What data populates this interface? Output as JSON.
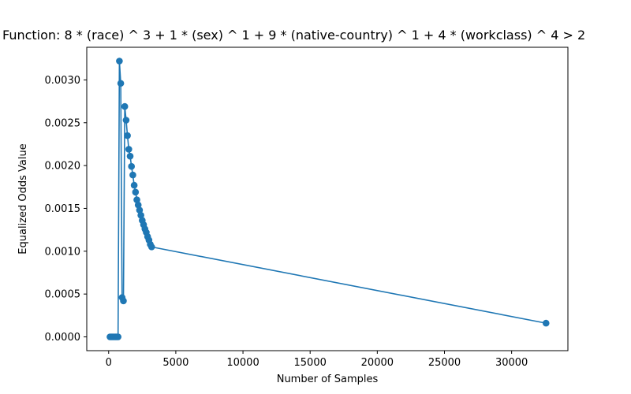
{
  "chart_data": {
    "type": "line",
    "title": "Function:  8 * (race) ^ 3 +  1 * (sex) ^ 1 +  9 * (native-country) ^ 1 +  4 * (workclass) ^ 4   >  2",
    "xlabel": "Number of Samples",
    "ylabel": "Equalized Odds Value",
    "xlim": [
      -1630,
      34190
    ],
    "ylim": [
      -0.000161,
      0.003381
    ],
    "xticks": [
      0,
      5000,
      10000,
      15000,
      20000,
      25000,
      30000
    ],
    "yticks": [
      0.0,
      0.0005,
      0.001,
      0.0015,
      0.002,
      0.0025,
      0.003
    ],
    "ytick_labels": [
      "0.0000",
      "0.0005",
      "0.0010",
      "0.0015",
      "0.0020",
      "0.0025",
      "0.0030"
    ],
    "series_color": "#1f77b4",
    "series": [
      {
        "name": "Equalized Odds",
        "x": [
          100,
          200,
          300,
          400,
          500,
          600,
          700,
          800,
          900,
          1000,
          1100,
          1200,
          1300,
          1400,
          1500,
          1600,
          1700,
          1800,
          1900,
          2000,
          2100,
          2200,
          2300,
          2400,
          2500,
          2600,
          2700,
          2800,
          2900,
          3000,
          3100,
          3200,
          32561
        ],
        "y": [
          0.0,
          0.0,
          0.0,
          0.0,
          0.0,
          0.0,
          0.0,
          0.00322,
          0.00296,
          0.00046,
          0.00042,
          0.00269,
          0.00253,
          0.00235,
          0.00219,
          0.00211,
          0.00199,
          0.00189,
          0.00177,
          0.00169,
          0.0016,
          0.00154,
          0.00148,
          0.00142,
          0.00136,
          0.00131,
          0.00126,
          0.00122,
          0.00117,
          0.00113,
          0.00108,
          0.00105,
          0.00016
        ]
      }
    ]
  }
}
